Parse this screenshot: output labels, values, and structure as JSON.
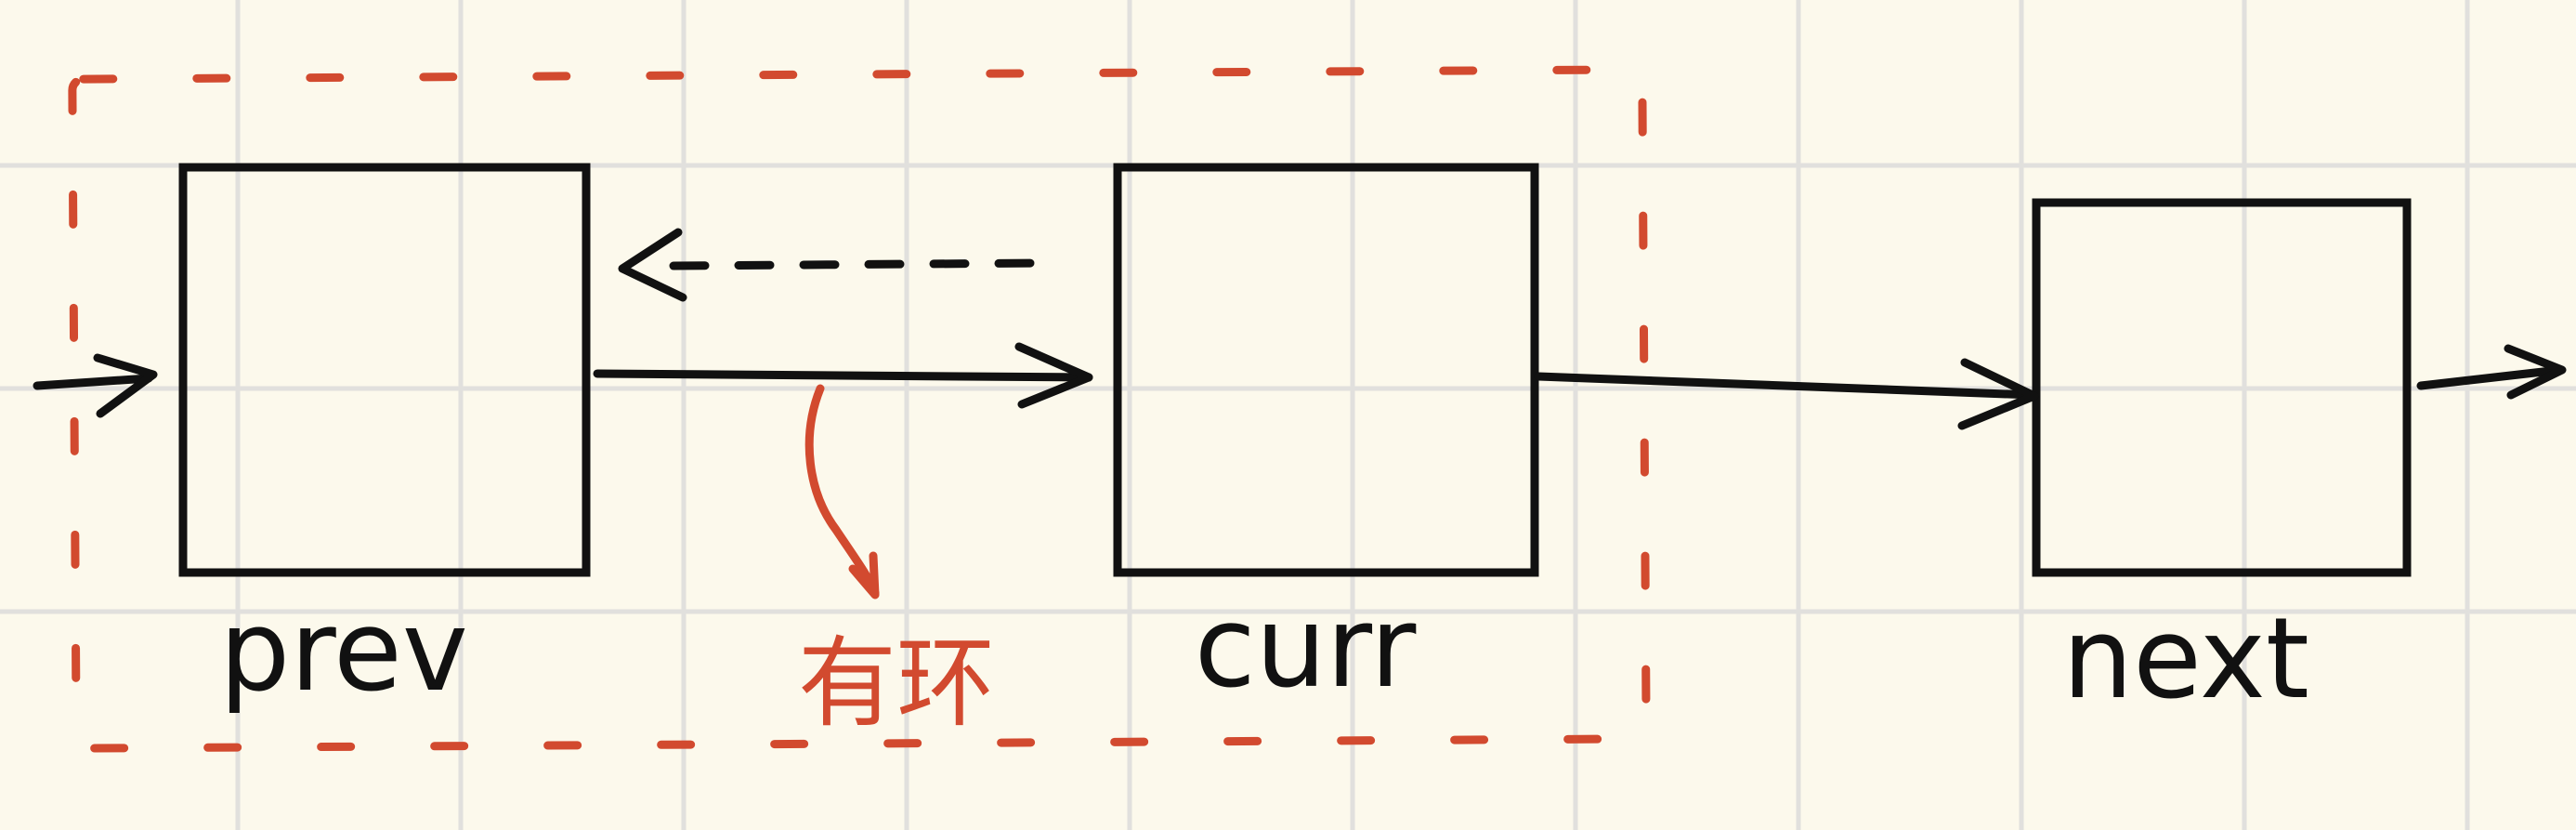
{
  "diagram": {
    "nodes": [
      {
        "id": "prev",
        "label": "prev"
      },
      {
        "id": "curr",
        "label": "curr"
      },
      {
        "id": "next",
        "label": "next"
      }
    ],
    "annotation": {
      "label": "有环",
      "color": "#d24a2f"
    },
    "colors": {
      "ink": "#111111",
      "accent": "#d24a2f",
      "grid": "#e1e0dd",
      "paper": "#fcf9ec"
    }
  }
}
